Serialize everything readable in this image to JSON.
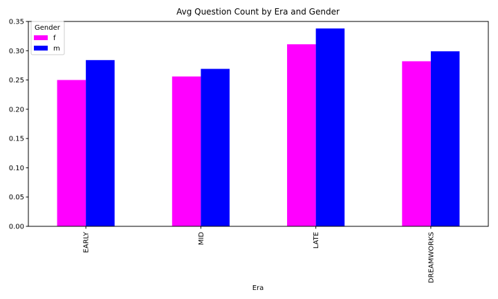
{
  "chart_data": {
    "type": "bar",
    "title": "Avg Question Count by Era and Gender",
    "xlabel": "Era",
    "ylabel": "",
    "categories": [
      "EARLY",
      "MID",
      "LATE",
      "DREAMWORKS"
    ],
    "series": [
      {
        "name": "f",
        "color": "#ff00ff",
        "values": [
          0.25,
          0.256,
          0.311,
          0.282
        ]
      },
      {
        "name": "m",
        "color": "#0000ff",
        "values": [
          0.284,
          0.269,
          0.338,
          0.299
        ]
      }
    ],
    "ylim": [
      0,
      0.35
    ],
    "yticks": [
      "0.00",
      "0.05",
      "0.10",
      "0.15",
      "0.20",
      "0.25",
      "0.30",
      "0.35"
    ],
    "legend": {
      "title": "Gender",
      "placement": "top-left"
    },
    "grid": false
  }
}
